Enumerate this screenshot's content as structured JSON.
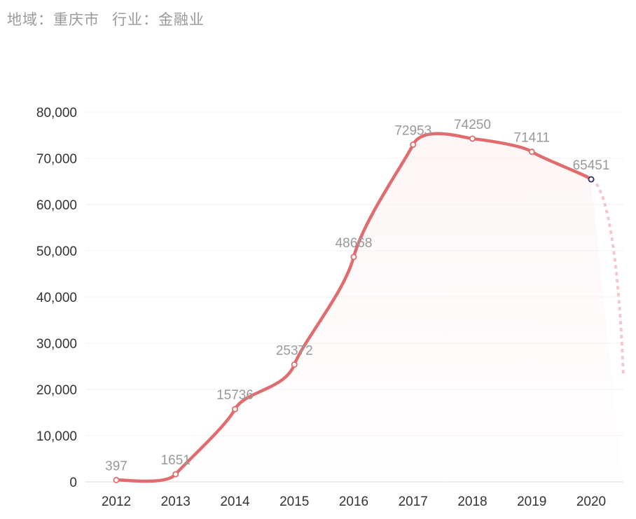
{
  "header": {
    "region_label": "地域：",
    "region_value": "重庆市",
    "industry_label": "行业：",
    "industry_value": "金融业"
  },
  "chart_data": {
    "type": "line",
    "title": "",
    "xlabel": "",
    "ylabel": "",
    "categories": [
      "2012",
      "2013",
      "2014",
      "2015",
      "2016",
      "2017",
      "2018",
      "2019",
      "2020"
    ],
    "series": [
      {
        "values": [
          397,
          1651,
          15736,
          25372,
          48668,
          72953,
          74250,
          71411,
          65451
        ]
      }
    ],
    "data_labels": [
      "397",
      "1651",
      "15736",
      "25372",
      "48668",
      "72953",
      "74250",
      "71411",
      "65451"
    ],
    "y_ticks": [
      "0",
      "10,000",
      "20,000",
      "30,000",
      "40,000",
      "50,000",
      "60,000",
      "70,000",
      "80,000"
    ],
    "ylim": [
      0,
      80000
    ],
    "grid": true,
    "line_color": "#e06c6e",
    "marker_color": "#e06c6e",
    "last_marker_color": "#333366",
    "trend_color": "#f4c8cb"
  }
}
